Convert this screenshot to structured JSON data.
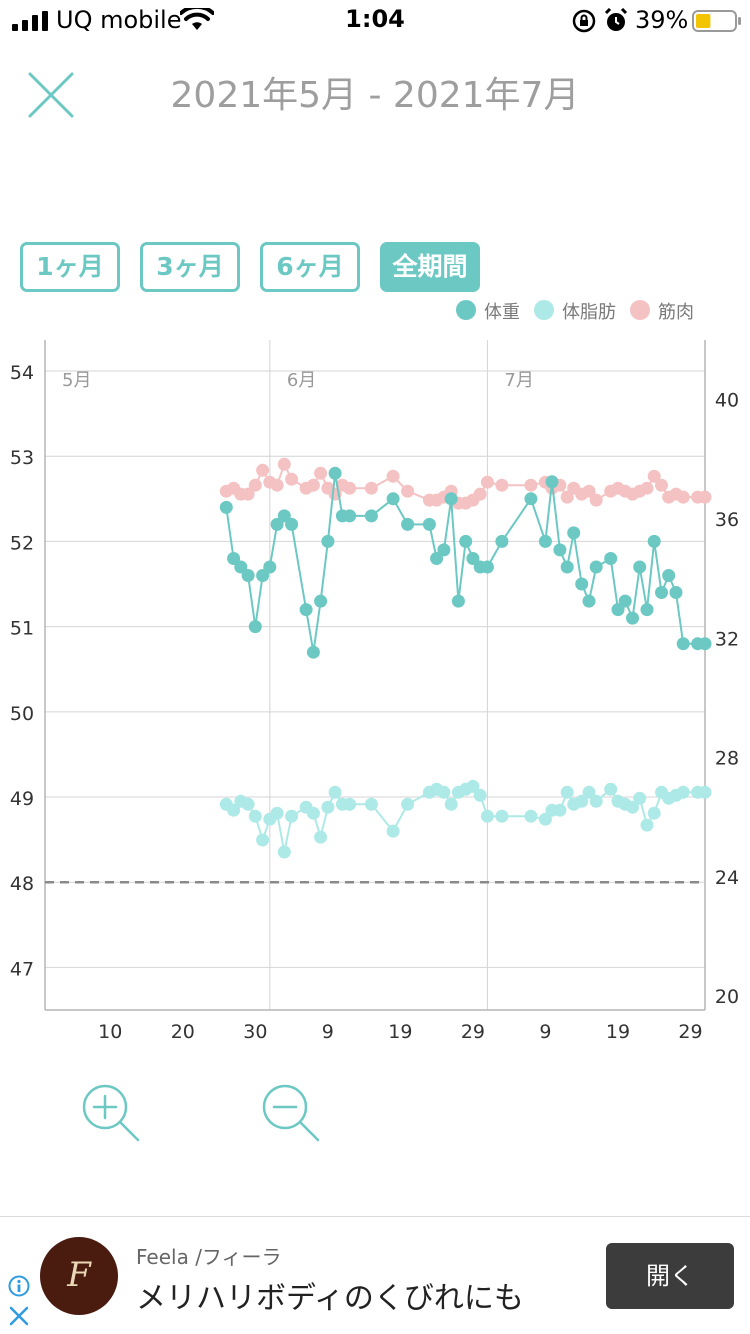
{
  "status_bar": {
    "carrier": "UQ mobile",
    "time": "1:04",
    "battery": "39%",
    "battery_level": 0.39
  },
  "header": {
    "title": "2021年5月 - 2021年7月"
  },
  "range_buttons": [
    {
      "label": "1ヶ月",
      "active": false
    },
    {
      "label": "3ヶ月",
      "active": false
    },
    {
      "label": "6ヶ月",
      "active": false
    },
    {
      "label": "全期間",
      "active": true
    }
  ],
  "legend": [
    {
      "label": "体重",
      "color": "#6cc8c3"
    },
    {
      "label": "体脂肪",
      "color": "#ade9e6"
    },
    {
      "label": "筋肉",
      "color": "#f4c2c2"
    }
  ],
  "chart_data": {
    "type": "line",
    "x_axis": {
      "min_day": 1,
      "max_day": 92,
      "tick_labels": [
        "10",
        "20",
        "30",
        "9",
        "19",
        "29",
        "9",
        "19",
        "29"
      ],
      "tick_days": [
        10,
        20,
        30,
        40,
        50,
        60,
        70,
        80,
        90
      ],
      "month_labels": [
        "5月",
        "6月",
        "7月"
      ],
      "month_start_days": [
        1,
        32,
        62
      ]
    },
    "left_axis": {
      "min": 46.5,
      "max": 54.2,
      "tick_labels": [
        "54",
        "53",
        "52",
        "51",
        "50",
        "49",
        "48",
        "47"
      ],
      "ticks": [
        54,
        53,
        52,
        51,
        50,
        49,
        48,
        47
      ]
    },
    "right_axis": {
      "min": 19.5,
      "max": 41.5,
      "tick_labels": [
        "40",
        "36",
        "32",
        "28",
        "24",
        "20"
      ],
      "ticks": [
        40,
        36,
        32,
        28,
        24,
        20
      ]
    },
    "target_line": {
      "axis": "left",
      "value": 48.0
    },
    "series": [
      {
        "name": "体重",
        "axis": "left",
        "color": "#6cc8c3",
        "x": [
          26,
          27,
          28,
          29,
          30,
          31,
          32,
          33,
          34,
          35,
          37,
          38,
          39,
          40,
          41,
          42,
          43,
          46,
          49,
          51,
          54,
          55,
          56,
          57,
          58,
          59,
          60,
          61,
          62,
          64,
          68,
          70,
          70.9,
          72,
          73,
          73.9,
          75,
          76,
          77,
          79,
          80,
          81,
          82,
          83,
          84,
          85,
          86,
          87,
          88,
          89,
          91,
          92
        ],
        "y": [
          52.4,
          51.8,
          51.7,
          51.6,
          51.0,
          51.6,
          51.7,
          52.2,
          52.3,
          52.2,
          51.2,
          50.7,
          51.3,
          52.0,
          52.8,
          52.3,
          52.3,
          52.3,
          52.5,
          52.2,
          52.2,
          51.8,
          51.9,
          52.5,
          51.3,
          52.0,
          51.8,
          51.7,
          51.7,
          52.0,
          52.5,
          52.0,
          52.7,
          51.9,
          51.7,
          52.1,
          51.5,
          51.3,
          51.7,
          51.8,
          51.2,
          51.3,
          51.1,
          51.7,
          51.2,
          52.0,
          51.4,
          51.6,
          51.4,
          50.8,
          50.8,
          50.8
        ]
      },
      {
        "name": "体脂肪",
        "axis": "right",
        "color": "#ade9e6",
        "x": [
          26,
          27,
          28,
          29,
          30,
          31,
          32,
          33,
          34,
          35,
          37,
          38,
          39,
          40,
          41,
          42,
          43,
          46,
          49,
          51,
          54,
          55,
          56,
          57,
          58,
          59,
          60,
          61,
          62,
          64,
          68,
          70,
          70.9,
          72,
          73,
          73.9,
          75,
          76,
          77,
          79,
          80,
          81,
          82,
          83,
          84,
          85,
          86,
          87,
          88,
          89,
          91,
          92
        ],
        "y": [
          26.4,
          26.2,
          26.5,
          26.4,
          26.0,
          25.2,
          25.9,
          26.1,
          24.8,
          26.0,
          26.3,
          26.1,
          25.3,
          26.3,
          26.8,
          26.4,
          26.4,
          26.4,
          25.5,
          26.4,
          26.8,
          26.9,
          26.8,
          26.4,
          26.8,
          26.9,
          27.0,
          26.7,
          26.0,
          26.0,
          26.0,
          25.9,
          26.2,
          26.2,
          26.8,
          26.4,
          26.5,
          26.8,
          26.5,
          26.9,
          26.5,
          26.4,
          26.3,
          26.6,
          25.7,
          26.1,
          26.8,
          26.6,
          26.7,
          26.8,
          26.8,
          26.8
        ]
      },
      {
        "name": "筋肉",
        "axis": "right",
        "color": "#f4c2c2",
        "x": [
          26,
          27,
          28,
          29,
          30,
          31,
          32,
          33,
          34,
          35,
          37,
          38,
          39,
          40,
          41,
          42,
          43,
          46,
          49,
          51,
          54,
          55,
          56,
          57,
          58,
          59,
          60,
          61,
          62,
          64,
          68,
          70,
          70.9,
          72,
          73,
          73.9,
          75,
          76,
          77,
          79,
          80,
          81,
          82,
          83,
          84,
          85,
          86,
          87,
          88,
          89,
          91,
          92
        ],
        "y": [
          36.9,
          37.0,
          36.8,
          36.8,
          37.1,
          37.6,
          37.2,
          37.1,
          37.8,
          37.3,
          37.0,
          37.1,
          37.5,
          37.0,
          36.8,
          37.1,
          37.0,
          37.0,
          37.4,
          36.9,
          36.6,
          36.6,
          36.7,
          36.9,
          36.5,
          36.5,
          36.6,
          36.8,
          37.2,
          37.1,
          37.1,
          37.2,
          37.0,
          37.1,
          36.7,
          37.0,
          36.8,
          36.9,
          36.6,
          36.9,
          37.0,
          36.9,
          36.8,
          36.9,
          37.0,
          37.4,
          37.1,
          36.7,
          36.8,
          36.7,
          36.7,
          36.7
        ]
      }
    ]
  },
  "zoom": {
    "in_icon": "zoom-in-icon",
    "out_icon": "zoom-out-icon"
  },
  "ad": {
    "brand": "Feela /フィーラ",
    "copy": "メリハリボディのくびれにも",
    "cta": "開く",
    "logo_text": "F"
  }
}
